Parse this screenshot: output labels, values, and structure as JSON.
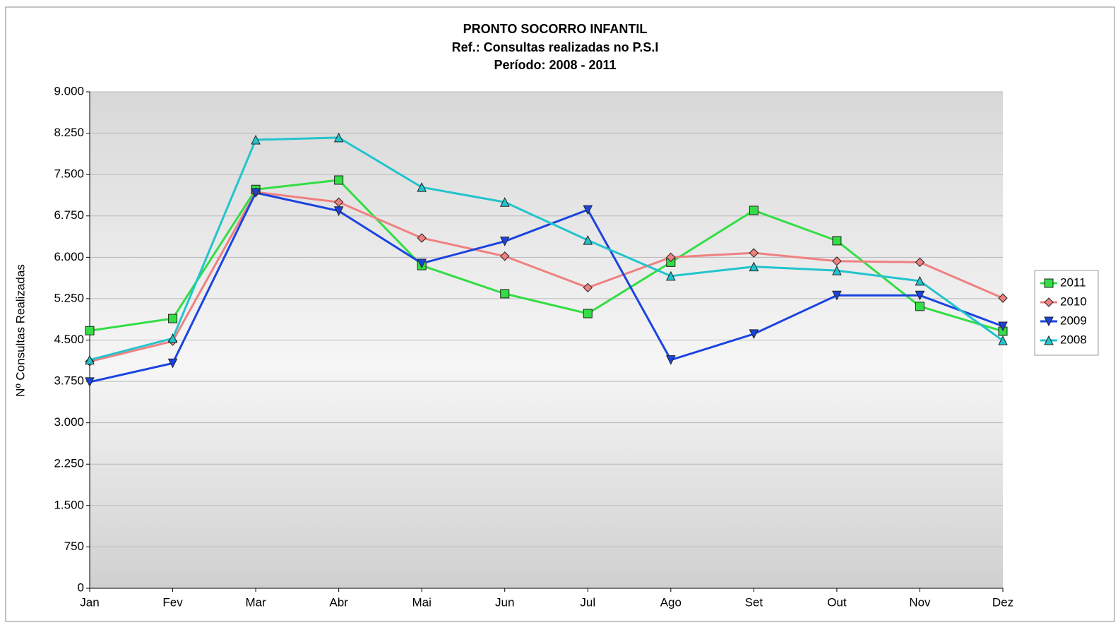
{
  "chart_data": {
    "type": "line",
    "title": "PRONTO SOCORRO INFANTIL",
    "subtitle": [
      "Ref.: Consultas realizadas no P.S.I",
      "Período: 2008 - 2011"
    ],
    "y_label": "Nº Consultas Realizadas",
    "categories": [
      "Jan",
      "Fev",
      "Mar",
      "Abr",
      "Mai",
      "Jun",
      "Jul",
      "Ago",
      "Set",
      "Out",
      "Nov",
      "Dez"
    ],
    "series": [
      {
        "name": "2011",
        "color": "#33dd44",
        "marker": "square",
        "values": [
          4670,
          4890,
          7230,
          7400,
          5850,
          5340,
          4980,
          5910,
          6850,
          6300,
          5110,
          4660
        ]
      },
      {
        "name": "2010",
        "color": "#f08080",
        "marker": "diamond",
        "values": [
          4110,
          4480,
          7180,
          7000,
          6350,
          6020,
          5450,
          6000,
          6080,
          5930,
          5910,
          5260
        ]
      },
      {
        "name": "2009",
        "color": "#1a44e0",
        "marker": "triangle-down",
        "values": [
          3740,
          4080,
          7170,
          6840,
          5890,
          6290,
          6860,
          4140,
          4610,
          5310,
          5310,
          4750
        ]
      },
      {
        "name": "2008",
        "color": "#22c4cc",
        "marker": "triangle-up",
        "values": [
          4140,
          4530,
          8130,
          8170,
          7270,
          7000,
          6310,
          5660,
          5830,
          5760,
          5570,
          4490
        ]
      }
    ],
    "ylim": [
      0,
      9000
    ],
    "yticks": [
      0,
      750,
      {
        "value": 1500,
        "label": "1.500"
      },
      {
        "value": 2250,
        "label": "2.250"
      },
      {
        "value": 3000,
        "label": "3.000"
      },
      {
        "value": 3750,
        "label": "3.750"
      },
      {
        "value": 4500,
        "label": "4.500"
      },
      {
        "value": 5250,
        "label": "5.250"
      },
      {
        "value": 6000,
        "label": "6.000"
      },
      {
        "value": 6750,
        "label": "6.750"
      },
      {
        "value": 7500,
        "label": "7.500"
      },
      {
        "value": 8250,
        "label": "8.250"
      },
      {
        "value": 9000,
        "label": "9.000"
      }
    ],
    "grid": true,
    "legend": "right"
  }
}
